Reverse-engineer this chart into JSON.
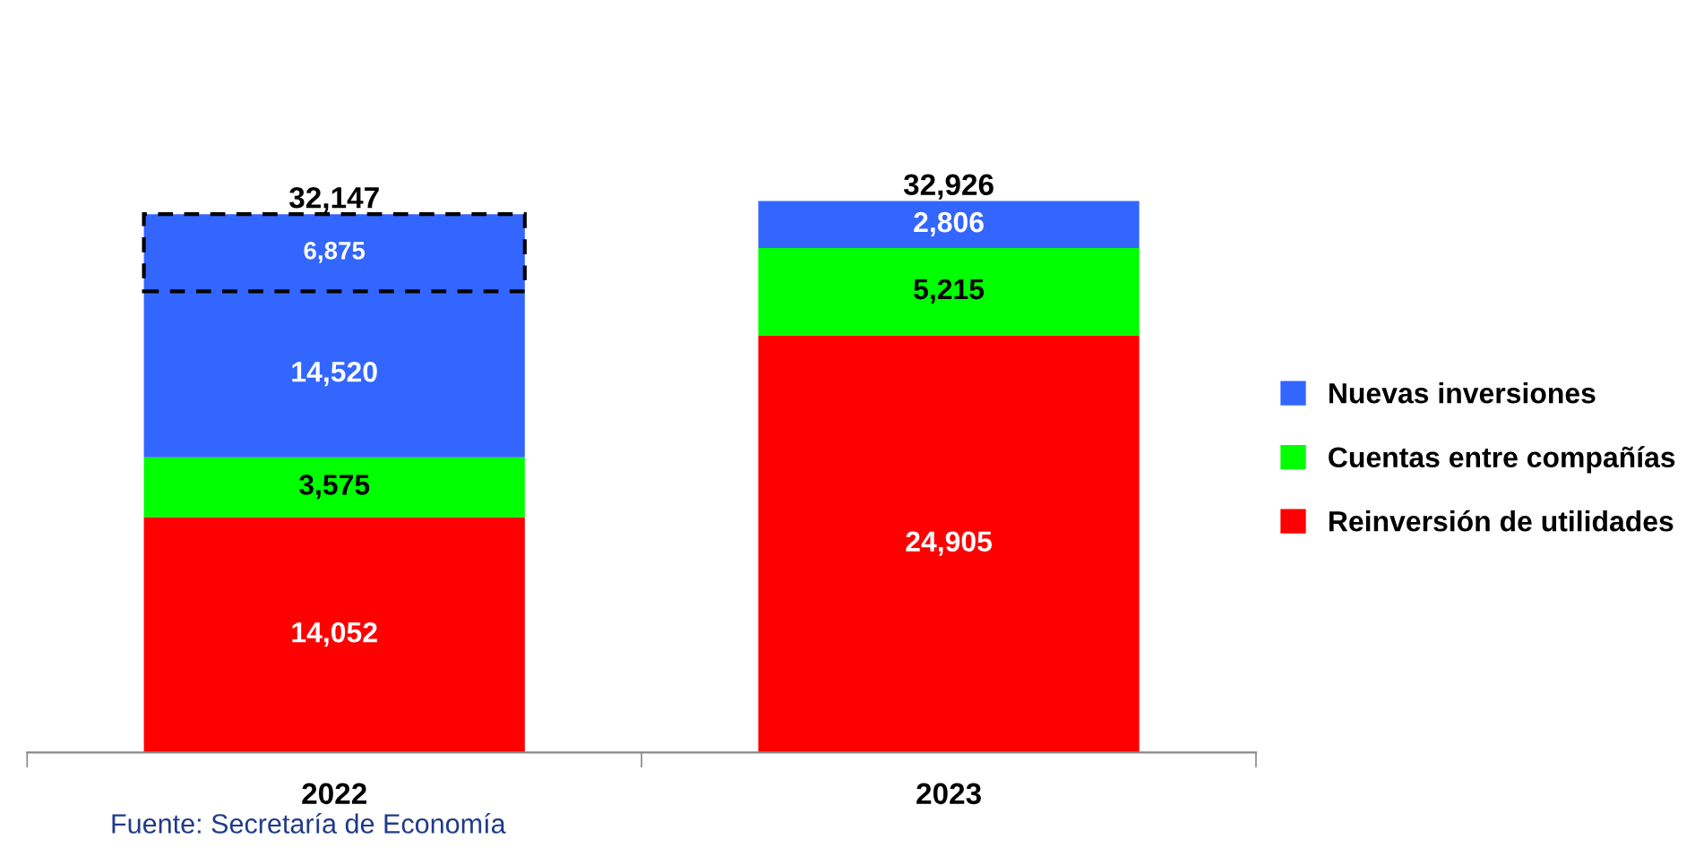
{
  "chart_data": {
    "type": "bar",
    "stacked": true,
    "categories": [
      "2022",
      "2023"
    ],
    "series": [
      {
        "name": "Reinversión de utilidades",
        "color": "#ff0000",
        "values": [
          14052,
          24905
        ],
        "value_labels": [
          "14,052",
          "24,905"
        ]
      },
      {
        "name": "Cuentas entre compañías",
        "color": "#00ff00",
        "values": [
          3575,
          5215
        ],
        "value_labels": [
          "3,575",
          "5,215"
        ]
      },
      {
        "name": "Nuevas inversiones",
        "color": "#3366ff",
        "values": [
          14520,
          2806
        ],
        "value_labels": [
          "14,520",
          "2,806"
        ]
      }
    ],
    "totals": [
      "32,147",
      "32,926"
    ],
    "legend": "right",
    "grid": false,
    "annotations": [
      "6,875",
      "Fuente: Secretaría de Economía"
    ]
  }
}
